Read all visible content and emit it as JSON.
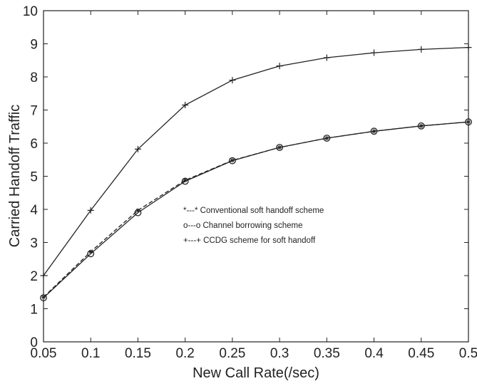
{
  "chart_data": {
    "type": "line",
    "title": "",
    "xlabel": "New Call Rate(/sec)",
    "ylabel": "Carried Handoff Traffic",
    "xlim": [
      0.05,
      0.5
    ],
    "ylim": [
      0,
      10
    ],
    "xticks": [
      "0.05",
      "0.1",
      "0.15",
      "0.2",
      "0.25",
      "0.3",
      "0.35",
      "0.4",
      "0.45",
      "0.5"
    ],
    "yticks": [
      "0",
      "1",
      "2",
      "3",
      "4",
      "5",
      "6",
      "7",
      "8",
      "9",
      "10"
    ],
    "grid": false,
    "x": [
      0.05,
      0.1,
      0.15,
      0.2,
      0.25,
      0.3,
      0.35,
      0.4,
      0.45,
      0.5
    ],
    "series": [
      {
        "name": "Conventional soft handoff scheme",
        "legend_text": "*---* Conventional soft handoff scheme",
        "marker": "*",
        "line": "dashed",
        "values": [
          1.35,
          2.72,
          3.97,
          4.88,
          5.48,
          5.87,
          6.15,
          6.36,
          6.52,
          6.64
        ]
      },
      {
        "name": "Channel borrowing scheme",
        "legend_text": "o---o Channel borrowing scheme",
        "marker": "o",
        "line": "solid",
        "values": [
          1.33,
          2.66,
          3.9,
          4.85,
          5.47,
          5.87,
          6.15,
          6.36,
          6.52,
          6.64
        ]
      },
      {
        "name": "CCDG scheme for soft handoff",
        "legend_text": "+---+ CCDG scheme for soft handoff",
        "marker": "+",
        "line": "solid",
        "values": [
          2.0,
          3.97,
          5.82,
          7.15,
          7.9,
          8.33,
          8.58,
          8.73,
          8.83,
          8.89
        ]
      }
    ],
    "legend_position": "center"
  }
}
